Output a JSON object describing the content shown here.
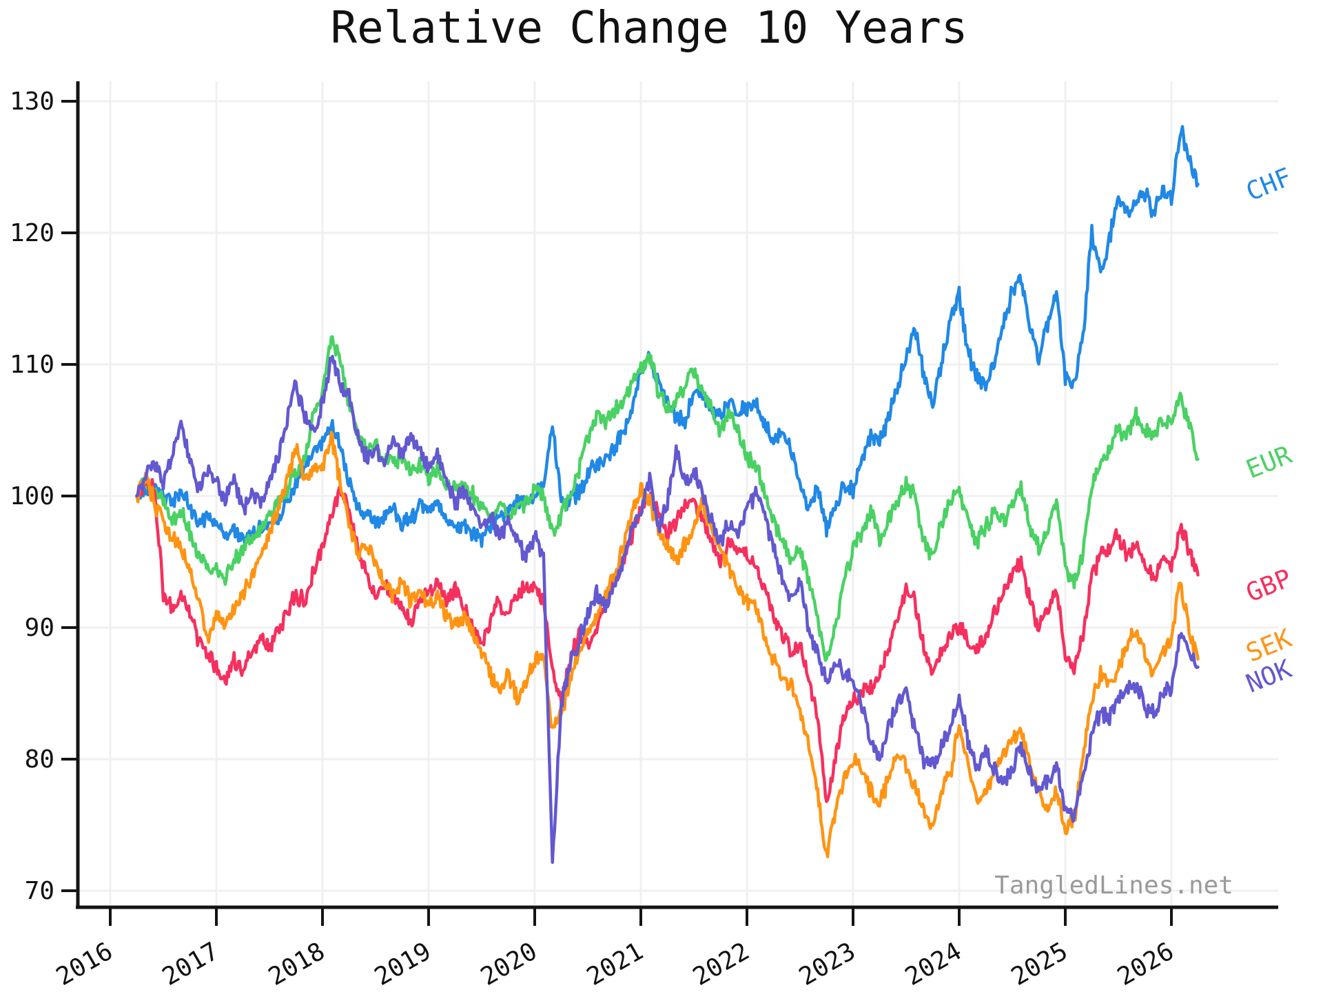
{
  "title": "Relative Change 10 Years",
  "watermark": "TangledLines.net",
  "axes": {
    "y_ticks": [
      70,
      80,
      90,
      100,
      110,
      120,
      130
    ],
    "x_ticks": [
      2016,
      2017,
      2018,
      2019,
      2020,
      2021,
      2022,
      2023,
      2024,
      2025,
      2026
    ],
    "ylim": [
      70,
      130
    ],
    "grid": true,
    "grid_color": "#f0f0f0",
    "axis_color": "#141414",
    "background_color": "#ffffff"
  },
  "chart_data": {
    "type": "line",
    "title": "Relative Change 10 Years",
    "xlabel": "",
    "ylabel": "",
    "ylim": [
      70,
      130
    ],
    "x_start_year": 2016.25,
    "x_step_years": 0.0833333,
    "legend_position": "right-edge-labels",
    "noise_amplitude": 0.55,
    "upsample": 8,
    "seed": 42,
    "series": [
      {
        "name": "CHF",
        "color": "#2088e5",
        "values": [
          100,
          100.5,
          101,
          100,
          99.5,
          100.5,
          99,
          98,
          98.5,
          98,
          97,
          97.5,
          96.5,
          97,
          97.5,
          98,
          98.5,
          99.5,
          101,
          102,
          103.5,
          104,
          105.5,
          104,
          101,
          99,
          98.5,
          98,
          98.5,
          99,
          98,
          98.5,
          99,
          99,
          99.5,
          98,
          97.5,
          98,
          97,
          96.5,
          97.5,
          98.5,
          99,
          99.5,
          99.5,
          100,
          101,
          105.5,
          100,
          99.5,
          100.5,
          101.5,
          102.5,
          103,
          103.5,
          105,
          106.5,
          109.5,
          110.5,
          108.5,
          107,
          106,
          105.5,
          108,
          107.5,
          106.5,
          106,
          107,
          106.5,
          106.5,
          107,
          105.5,
          104,
          105,
          103.5,
          101,
          99,
          100.5,
          97.5,
          99,
          101,
          100.5,
          103,
          104.5,
          104,
          106,
          108,
          110.5,
          113,
          109,
          107,
          110,
          113.5,
          115.5,
          111,
          109,
          108.5,
          110.5,
          113,
          115.5,
          116.5,
          113,
          110.5,
          113,
          115.5,
          109,
          108.5,
          112,
          120,
          117,
          119.5,
          123,
          121.5,
          122.5,
          123,
          121.5,
          123.5,
          122.5,
          128,
          125.5,
          123.7
        ]
      },
      {
        "name": "EUR",
        "color": "#4ad164",
        "values": [
          100,
          101,
          100.5,
          99.5,
          98,
          99,
          97,
          95.5,
          94.5,
          94.5,
          93.8,
          95,
          96,
          96.5,
          97.5,
          98.5,
          99.5,
          100.5,
          102,
          103,
          106,
          108,
          112,
          110.5,
          107,
          104.5,
          103.5,
          104,
          103,
          102.5,
          103,
          102,
          102.5,
          101.5,
          102,
          101,
          100.5,
          101,
          100,
          99.5,
          98.5,
          99.5,
          98.5,
          99,
          99.5,
          100.5,
          100,
          97,
          98.5,
          100,
          102,
          104.5,
          106,
          105.5,
          106.5,
          107,
          108.5,
          110,
          110.5,
          108,
          106.5,
          107.5,
          108.5,
          109.5,
          108,
          106.5,
          105,
          106.5,
          105,
          103,
          102.5,
          100.5,
          98,
          96.5,
          95,
          96,
          93.5,
          90.5,
          87.5,
          90,
          93.5,
          96,
          97,
          99,
          96.5,
          98,
          99.5,
          101,
          100,
          96.5,
          95.5,
          98,
          99.5,
          100.3,
          98,
          96.5,
          97.5,
          99,
          98,
          99.5,
          100.5,
          97.5,
          96,
          97.5,
          99.5,
          94.5,
          93.5,
          95.5,
          101,
          102.5,
          103.5,
          105,
          104.5,
          106,
          105,
          104.5,
          106,
          105.5,
          107.5,
          105.5,
          102.8
        ]
      },
      {
        "name": "GBP",
        "color": "#f5305e",
        "values": [
          100,
          101,
          100.5,
          92.5,
          91.5,
          92.5,
          91,
          89,
          88,
          87,
          86,
          87.5,
          86.5,
          88,
          89.5,
          88.5,
          90,
          91,
          92.5,
          92,
          94.5,
          96,
          98.5,
          100.5,
          99,
          96,
          94,
          92.5,
          93.5,
          92,
          91.5,
          90.5,
          92,
          92.5,
          93.5,
          92,
          93,
          91.5,
          90,
          89,
          90.5,
          92,
          91,
          92.5,
          93,
          93.5,
          92,
          86.5,
          84.5,
          87.5,
          89.5,
          88.5,
          90,
          92,
          93.5,
          95,
          97,
          99,
          100.3,
          98.5,
          97,
          98,
          99.5,
          100,
          98,
          96.5,
          95,
          96.5,
          96,
          95.5,
          95,
          93,
          91,
          89.5,
          88,
          89,
          86,
          83,
          76.5,
          80,
          83.5,
          84.5,
          85,
          85.5,
          86.5,
          88.5,
          90.5,
          93,
          92,
          88.5,
          86.5,
          88,
          89.5,
          90.2,
          89,
          88.3,
          89.5,
          91,
          92.5,
          94,
          95.1,
          92,
          90,
          91.5,
          93,
          88,
          86.9,
          89.5,
          94,
          95.5,
          96,
          97.1,
          95.5,
          96.5,
          95,
          93.5,
          95.5,
          94.5,
          97.6,
          96,
          94
        ]
      },
      {
        "name": "SEK",
        "color": "#ff9413",
        "values": [
          100,
          101.5,
          99.5,
          98,
          97,
          96,
          94.5,
          92,
          89,
          91,
          90,
          91.5,
          92.5,
          94,
          95.5,
          97,
          99,
          101.5,
          103.5,
          101,
          102,
          102.5,
          104.5,
          101,
          98,
          95.5,
          96.5,
          95,
          93.5,
          92.5,
          93.5,
          92,
          93,
          91.5,
          92.5,
          91,
          90,
          91,
          89.5,
          88,
          86.5,
          85,
          86.5,
          84.5,
          86,
          87.5,
          88,
          82,
          83.5,
          86,
          88,
          89.5,
          91,
          92.5,
          94,
          96,
          98.5,
          100.5,
          99.5,
          97.5,
          96,
          95,
          96.5,
          98,
          99.5,
          97.5,
          96,
          94.5,
          93,
          92,
          91.5,
          89.5,
          87.5,
          86,
          85.5,
          84,
          81,
          77.5,
          72.5,
          76,
          78.5,
          80,
          79,
          77.5,
          76.5,
          78.5,
          80.5,
          79.5,
          78,
          76,
          75,
          77.5,
          79,
          82.5,
          79.5,
          76.5,
          77.5,
          79,
          80.5,
          81.5,
          82.4,
          79.5,
          77.5,
          76,
          77.5,
          74.5,
          75.5,
          80,
          84.5,
          86.5,
          85.5,
          87,
          88.5,
          89.9,
          88,
          86.5,
          88,
          89,
          93.5,
          90,
          87.6
        ]
      },
      {
        "name": "NOK",
        "color": "#6258d0",
        "values": [
          100,
          101.5,
          102.5,
          101,
          103,
          105.5,
          102.5,
          100.5,
          102,
          101,
          99.5,
          101.5,
          99,
          100.5,
          99.5,
          101,
          103,
          106,
          108.5,
          106,
          105,
          107,
          110.5,
          108.5,
          107.5,
          104.5,
          103,
          103.5,
          102.5,
          104,
          103,
          104.5,
          103.5,
          102,
          103,
          101,
          99.5,
          100.5,
          99,
          97.5,
          98.5,
          97,
          98,
          96.5,
          95.5,
          97,
          95.5,
          72,
          84,
          87.5,
          89,
          91,
          92.5,
          91.5,
          93,
          95,
          97.5,
          99,
          101.3,
          97.5,
          99.5,
          103.5,
          101,
          102,
          100,
          98,
          96.5,
          98,
          97,
          99,
          100.3,
          98.5,
          96,
          94,
          92,
          93.5,
          90,
          88,
          86,
          87.5,
          86.5,
          86,
          84,
          81.5,
          80,
          82.5,
          84,
          85.5,
          82,
          80,
          79.5,
          81,
          82.5,
          84.5,
          81.5,
          79.5,
          80.5,
          79,
          78.2,
          79.5,
          81,
          79,
          77.5,
          78.5,
          79.5,
          76.3,
          75.5,
          78.5,
          82,
          83.5,
          83,
          84.5,
          85.5,
          85.8,
          84,
          83.5,
          85,
          85.5,
          89.7,
          88,
          87
        ]
      }
    ]
  }
}
